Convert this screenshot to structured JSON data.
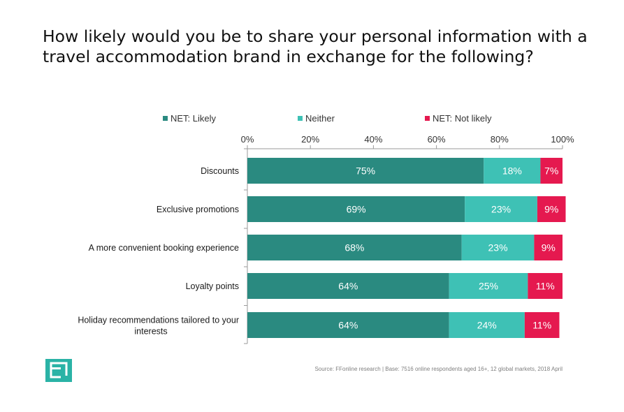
{
  "title": "How likely would you be to share your personal information with a travel accommodation brand in exchange for the following?",
  "source": "Source: FFonline research | Base: 7516 online respondents aged 16+, 12 global markets, 2018 April",
  "logo": {
    "icon": "brand-logo-icon",
    "color": "#2ab3a6"
  },
  "chart_data": {
    "type": "bar",
    "orientation": "horizontal",
    "stacked": true,
    "title": "",
    "xlabel": "",
    "ylabel": "",
    "xlim": [
      0,
      100
    ],
    "x_ticks": [
      "0%",
      "20%",
      "40%",
      "60%",
      "80%",
      "100%"
    ],
    "legend_position": "top",
    "grid": false,
    "categories": [
      "Discounts",
      "Exclusive promotions",
      "A more convenient booking experience",
      "Loyalty points",
      "Holiday recommendations tailored to your interests"
    ],
    "series": [
      {
        "name": "NET: Likely",
        "color": "#2a8a80",
        "values": [
          75,
          69,
          68,
          64,
          64
        ],
        "labels": [
          "75%",
          "69%",
          "68%",
          "64%",
          "64%"
        ]
      },
      {
        "name": "Neither",
        "color": "#3ec1b5",
        "values": [
          18,
          23,
          23,
          25,
          24
        ],
        "labels": [
          "18%",
          "23%",
          "23%",
          "25%",
          "24%"
        ]
      },
      {
        "name": "NET: Not likely",
        "color": "#e5194f",
        "values": [
          7,
          9,
          9,
          11,
          11
        ],
        "labels": [
          "7%",
          "9%",
          "9%",
          "11%",
          "11%"
        ]
      }
    ]
  }
}
